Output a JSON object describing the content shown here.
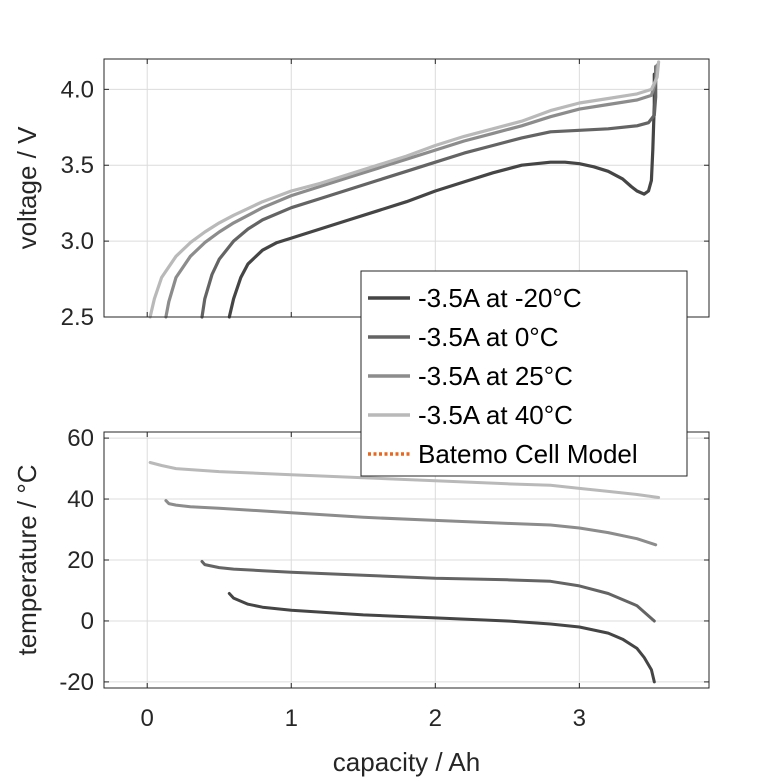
{
  "chart_data": [
    {
      "type": "line",
      "xlabel": "",
      "ylabel": "voltage / V",
      "xlim": [
        -0.3,
        3.9
      ],
      "ylim": [
        2.5,
        4.2
      ],
      "xticks": [
        0,
        1,
        2,
        3
      ],
      "yticks": [
        2.5,
        3.0,
        3.5,
        4.0
      ],
      "ytick_labels": [
        "2.5",
        "3.0",
        "3.5",
        "4.0"
      ],
      "grid": true,
      "series": [
        {
          "name": "-3.5A at -20°C",
          "color": "#454545",
          "x": [
            0.57,
            0.6,
            0.65,
            0.7,
            0.8,
            0.9,
            1.0,
            1.2,
            1.4,
            1.6,
            1.8,
            2.0,
            2.2,
            2.4,
            2.6,
            2.8,
            2.9,
            3.0,
            3.1,
            3.2,
            3.3,
            3.36,
            3.4,
            3.45,
            3.48,
            3.5,
            3.51,
            3.52,
            3.52
          ],
          "y": [
            2.5,
            2.62,
            2.76,
            2.85,
            2.94,
            2.99,
            3.02,
            3.08,
            3.14,
            3.2,
            3.26,
            3.33,
            3.39,
            3.45,
            3.5,
            3.52,
            3.52,
            3.51,
            3.49,
            3.46,
            3.41,
            3.36,
            3.33,
            3.31,
            3.33,
            3.4,
            3.6,
            3.9,
            4.1
          ]
        },
        {
          "name": "-3.5A at 0°C",
          "color": "#646464",
          "x": [
            0.38,
            0.4,
            0.45,
            0.5,
            0.6,
            0.7,
            0.8,
            1.0,
            1.2,
            1.4,
            1.6,
            1.8,
            2.0,
            2.2,
            2.4,
            2.6,
            2.8,
            3.0,
            3.2,
            3.4,
            3.48,
            3.52,
            3.53,
            3.53
          ],
          "y": [
            2.5,
            2.62,
            2.78,
            2.88,
            3.0,
            3.08,
            3.14,
            3.22,
            3.28,
            3.34,
            3.4,
            3.46,
            3.52,
            3.58,
            3.63,
            3.68,
            3.72,
            3.73,
            3.74,
            3.76,
            3.78,
            3.83,
            3.95,
            4.15
          ]
        },
        {
          "name": "-3.5A at 25°C",
          "color": "#8c8c8c",
          "x": [
            0.13,
            0.15,
            0.2,
            0.3,
            0.4,
            0.5,
            0.6,
            0.8,
            1.0,
            1.2,
            1.4,
            1.6,
            1.8,
            2.0,
            2.2,
            2.4,
            2.6,
            2.8,
            3.0,
            3.2,
            3.4,
            3.5,
            3.53,
            3.54
          ],
          "y": [
            2.5,
            2.6,
            2.76,
            2.9,
            2.99,
            3.06,
            3.12,
            3.22,
            3.3,
            3.36,
            3.42,
            3.48,
            3.54,
            3.6,
            3.66,
            3.71,
            3.76,
            3.82,
            3.87,
            3.9,
            3.93,
            3.96,
            4.05,
            4.16
          ]
        },
        {
          "name": "-3.5A at 40°C",
          "color": "#b9b9b9",
          "x": [
            0.02,
            0.05,
            0.1,
            0.2,
            0.3,
            0.4,
            0.5,
            0.6,
            0.8,
            1.0,
            1.2,
            1.4,
            1.6,
            1.8,
            2.0,
            2.2,
            2.4,
            2.6,
            2.8,
            3.0,
            3.2,
            3.4,
            3.5,
            3.54,
            3.55
          ],
          "y": [
            2.5,
            2.62,
            2.76,
            2.9,
            2.99,
            3.06,
            3.12,
            3.17,
            3.26,
            3.33,
            3.38,
            3.44,
            3.5,
            3.56,
            3.63,
            3.69,
            3.74,
            3.79,
            3.86,
            3.91,
            3.94,
            3.97,
            4.0,
            4.08,
            4.18
          ]
        }
      ]
    },
    {
      "type": "line",
      "xlabel": "capacity / Ah",
      "ylabel": "temperature / °C",
      "xlim": [
        -0.3,
        3.9
      ],
      "ylim": [
        -22,
        62
      ],
      "xticks": [
        0,
        1,
        2,
        3
      ],
      "xtick_labels": [
        "0",
        "1",
        "2",
        "3"
      ],
      "yticks": [
        -20,
        0,
        20,
        40,
        60
      ],
      "ytick_labels": [
        "-20",
        "0",
        "20",
        "40",
        "60"
      ],
      "grid": true,
      "series": [
        {
          "name": "-3.5A at -20°C",
          "color": "#454545",
          "x": [
            0.57,
            0.6,
            0.7,
            0.8,
            1.0,
            1.5,
            2.0,
            2.5,
            2.8,
            3.0,
            3.2,
            3.3,
            3.4,
            3.45,
            3.5,
            3.52
          ],
          "y": [
            9,
            7.5,
            5.5,
            4.5,
            3.5,
            2,
            1,
            0,
            -1,
            -2,
            -4,
            -6,
            -9,
            -12,
            -16,
            -20
          ]
        },
        {
          "name": "-3.5A at 0°C",
          "color": "#646464",
          "x": [
            0.38,
            0.4,
            0.5,
            0.6,
            0.8,
            1.0,
            1.5,
            2.0,
            2.5,
            2.8,
            3.0,
            3.2,
            3.4,
            3.52
          ],
          "y": [
            19.5,
            18.5,
            17.5,
            17,
            16.5,
            16,
            15,
            14,
            13.5,
            13,
            11.5,
            9,
            5,
            0
          ]
        },
        {
          "name": "-3.5A at 25°C",
          "color": "#8c8c8c",
          "x": [
            0.13,
            0.15,
            0.2,
            0.3,
            0.5,
            1.0,
            1.5,
            2.0,
            2.5,
            2.8,
            3.0,
            3.2,
            3.4,
            3.53
          ],
          "y": [
            39.5,
            38.5,
            38,
            37.5,
            37,
            35.5,
            34,
            33,
            32,
            31.5,
            30.5,
            29,
            27,
            25
          ]
        },
        {
          "name": "-3.5A at 40°C",
          "color": "#b9b9b9",
          "x": [
            0.02,
            0.1,
            0.2,
            0.5,
            1.0,
            1.5,
            2.0,
            2.5,
            2.8,
            3.0,
            3.2,
            3.4,
            3.55
          ],
          "y": [
            52,
            51,
            50,
            49,
            48,
            47,
            46,
            45,
            44.5,
            43.5,
            42.5,
            41.5,
            40.5
          ]
        }
      ]
    }
  ],
  "legend": {
    "location": "right, between panels",
    "entries": [
      {
        "label": "-3.5A at -20°C",
        "color": "#454545",
        "style": "solid"
      },
      {
        "label": "-3.5A at 0°C",
        "color": "#646464",
        "style": "solid"
      },
      {
        "label": "-3.5A at 25°C",
        "color": "#8c8c8c",
        "style": "solid"
      },
      {
        "label": "-3.5A at 40°C",
        "color": "#b9b9b9",
        "style": "solid"
      },
      {
        "label": "Batemo Cell Model",
        "color": "#e8661e",
        "style": "dotted"
      }
    ]
  }
}
